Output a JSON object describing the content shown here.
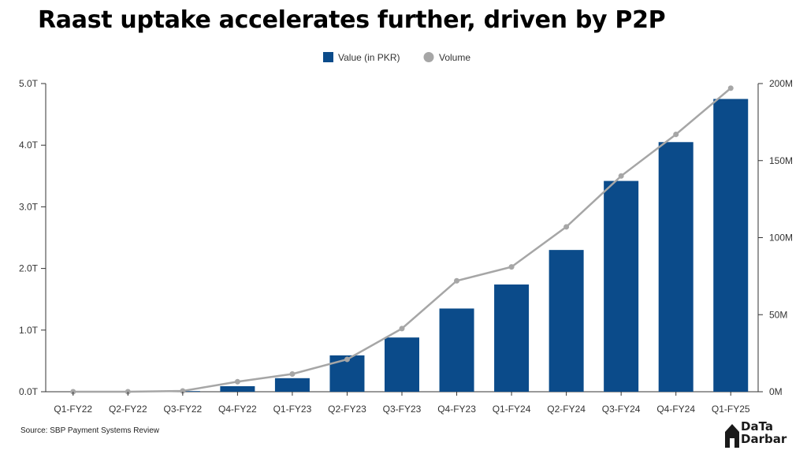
{
  "title": "Raast uptake accelerates further, driven by P2P",
  "source": "Source: SBP Payment Systems Review",
  "logo": {
    "line1": "DaTa",
    "line2": "Darbar",
    "icon": "house-icon"
  },
  "colors": {
    "bar": "#0b4b8a",
    "line": "#a6a6a6",
    "axis": "#333333",
    "tick_text": "#333333"
  },
  "chart_data": {
    "type": "bar",
    "categories": [
      "Q1-FY22",
      "Q2-FY22",
      "Q3-FY22",
      "Q4-FY22",
      "Q1-FY23",
      "Q2-FY23",
      "Q3-FY23",
      "Q4-FY23",
      "Q1-FY24",
      "Q2-FY24",
      "Q3-FY24",
      "Q4-FY24",
      "Q1-FY25"
    ],
    "series": [
      {
        "name": "Value (in PKR)",
        "type": "bar",
        "axis": "left",
        "unit": "T",
        "values": [
          0.0,
          0.0,
          0.01,
          0.09,
          0.22,
          0.59,
          0.88,
          1.35,
          1.74,
          2.3,
          3.42,
          4.05,
          4.75
        ]
      },
      {
        "name": "Volume",
        "type": "line",
        "axis": "right",
        "unit": "M",
        "values": [
          0,
          0,
          0.5,
          6.5,
          11.5,
          21,
          41,
          72,
          81,
          107,
          140,
          167,
          197
        ]
      }
    ],
    "y_left": {
      "ylim": [
        0,
        5
      ],
      "ticks": [
        "0.0T",
        "1.0T",
        "2.0T",
        "3.0T",
        "4.0T",
        "5.0T"
      ]
    },
    "y_right": {
      "ylim": [
        0,
        200
      ],
      "ticks": [
        "0M",
        "50M",
        "100M",
        "150M",
        "200M"
      ]
    },
    "legend": "top-center",
    "grid": false
  }
}
